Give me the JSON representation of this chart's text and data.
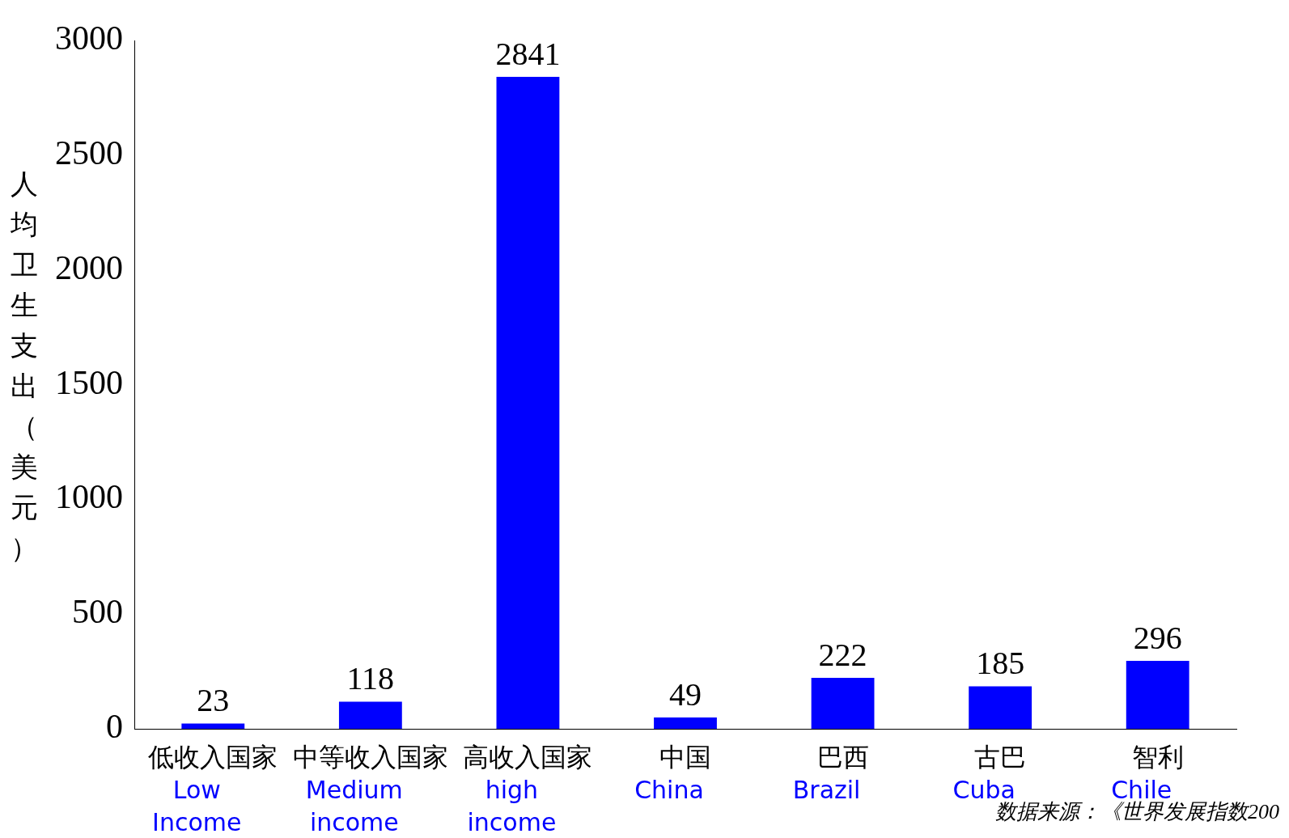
{
  "chart_data": {
    "type": "bar",
    "ylabel": "人均卫生支出（美元）",
    "categories": [
      "低收入国家\nLow\nIncome",
      "中等收入国家\nMedium\nincome",
      "高收入国家\nhigh\nincome",
      "中国\nChina",
      "巴西\nBrazil",
      "古巴\nCuba",
      "智利\nChile"
    ],
    "values": [
      23,
      118,
      2841,
      49,
      222,
      185,
      296
    ],
    "color": "#0000ff",
    "ylim": [
      0,
      3000
    ],
    "yticks": [
      0,
      500,
      1000,
      1500,
      2000,
      2500,
      3000
    ],
    "grid": false,
    "legend": false,
    "data_labels": true,
    "annotations": [
      "数据来源：《世界发展指数200"
    ]
  }
}
